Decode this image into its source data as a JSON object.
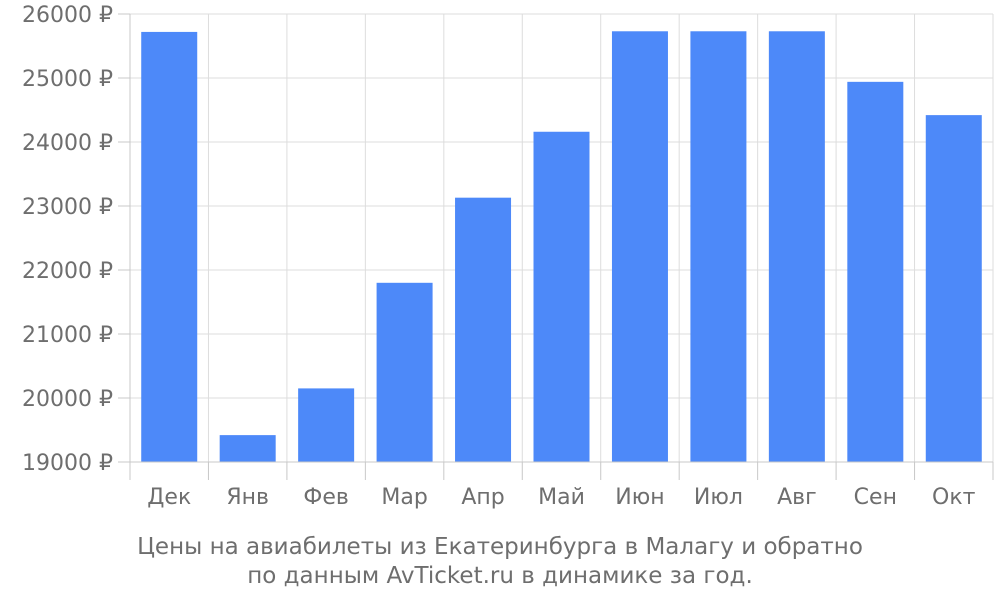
{
  "chart_data": {
    "type": "bar",
    "categories": [
      "Дек",
      "Янв",
      "Фев",
      "Мар",
      "Апр",
      "Май",
      "Июн",
      "Июл",
      "Авг",
      "Сен",
      "Окт"
    ],
    "values": [
      25720,
      19420,
      20150,
      21800,
      23130,
      24160,
      25730,
      25730,
      25730,
      24940,
      24420
    ],
    "y_ticks": [
      19000,
      20000,
      21000,
      22000,
      23000,
      24000,
      25000,
      26000
    ],
    "y_tick_suffix": " ₽",
    "ylim": [
      19000,
      26000
    ],
    "grid": true,
    "bar_color": "#4d89f9",
    "caption_line1": "Цены на авиабилеты из Екатеринбурга в Малагу и обратно",
    "caption_line2": "по данным AvTicket.ru в динамике за год."
  }
}
